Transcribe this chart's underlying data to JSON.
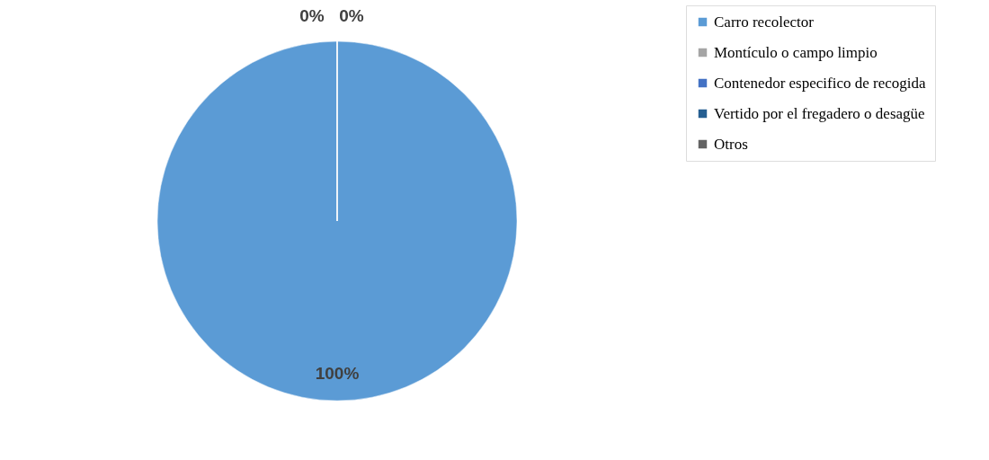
{
  "chart_data": {
    "type": "pie",
    "categories": [
      "Carro recolector",
      "Montículo o campo limpio",
      "Contenedor especifico de recogida",
      "Vertido por el fregadero o desagüe",
      "Otros"
    ],
    "values": [
      100,
      0,
      0,
      0,
      0
    ],
    "colors": [
      "#5b9bd5",
      "#a5a5a5",
      "#4472c4",
      "#255e91",
      "#636363"
    ],
    "value_labels": [
      "100%",
      "0%",
      "0%",
      null,
      null
    ],
    "legend": "right"
  }
}
